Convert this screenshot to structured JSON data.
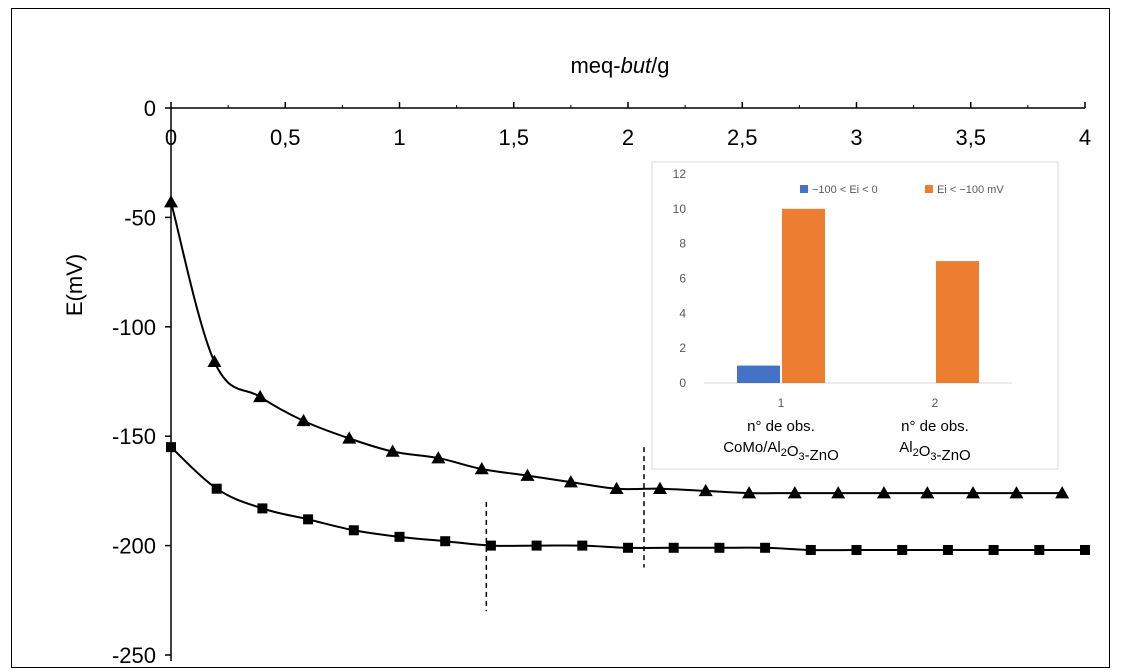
{
  "chart_data": [
    {
      "type": "line",
      "xlabel": "meq-but/g",
      "xlabel_parts": [
        {
          "text": "meq-",
          "italic": false
        },
        {
          "text": "but",
          "italic": true
        },
        {
          "text": "/g",
          "italic": false
        }
      ],
      "ylabel": "E(mV)",
      "xlim": [
        0,
        4
      ],
      "ylim": [
        -250,
        0
      ],
      "x_ticks": [
        "0",
        "0,5",
        "1",
        "1,5",
        "2",
        "2,5",
        "3",
        "3,5",
        "4"
      ],
      "y_ticks": [
        "0",
        "-50",
        "-100",
        "-150",
        "-200",
        "-250"
      ],
      "x_axis_position": "top",
      "grid": false,
      "series": [
        {
          "marker": "triangle",
          "color": "#000000",
          "x": [
            0,
            0.19,
            0.39,
            0.58,
            0.78,
            0.97,
            1.17,
            1.36,
            1.56,
            1.75,
            1.95,
            2.14,
            2.34,
            2.53,
            2.73,
            2.92,
            3.12,
            3.31,
            3.51,
            3.7,
            3.9
          ],
          "y": [
            -43,
            -116,
            -132,
            -143,
            -151,
            -157,
            -160,
            -165,
            -168,
            -171,
            -174,
            -174,
            -175,
            -176,
            -176,
            -176,
            -176,
            -176,
            -176,
            -176,
            -176
          ]
        },
        {
          "marker": "square",
          "color": "#000000",
          "x": [
            0,
            0.2,
            0.4,
            0.6,
            0.8,
            1.0,
            1.2,
            1.4,
            1.6,
            1.8,
            2.0,
            2.2,
            2.4,
            2.6,
            2.8,
            3.0,
            3.2,
            3.4,
            3.6,
            3.8,
            4.0
          ],
          "y": [
            -155,
            -174,
            -183,
            -188,
            -193,
            -196,
            -198,
            -200,
            -200,
            -200,
            -201,
            -201,
            -201,
            -201,
            -202,
            -202,
            -202,
            -202,
            -202,
            -202,
            -202
          ]
        }
      ],
      "vertical_markers": [
        {
          "x": 1.38,
          "y_range": [
            -180,
            -230
          ],
          "style": "dashed"
        },
        {
          "x": 2.07,
          "y_range": [
            -155,
            -210
          ],
          "style": "dashed"
        }
      ]
    },
    {
      "type": "bar",
      "categories": [
        "1",
        "2"
      ],
      "category_labels": [
        {
          "line1": "n° de obs.",
          "line2": "CoMo/Al2O3-ZnO"
        },
        {
          "line1": "n° de obs.",
          "line2": "Al2O3-ZnO"
        }
      ],
      "series": [
        {
          "name": "−100 < Ei < 0",
          "color": "#4472C4",
          "values": [
            1,
            0
          ]
        },
        {
          "name": "Ei < −100 mV",
          "color": "#ED7D31",
          "values": [
            10,
            7
          ]
        }
      ],
      "ylim": [
        0,
        12
      ],
      "y_ticks": [
        "0",
        "2",
        "4",
        "6",
        "8",
        "10",
        "12"
      ],
      "legend_position": "top"
    }
  ]
}
